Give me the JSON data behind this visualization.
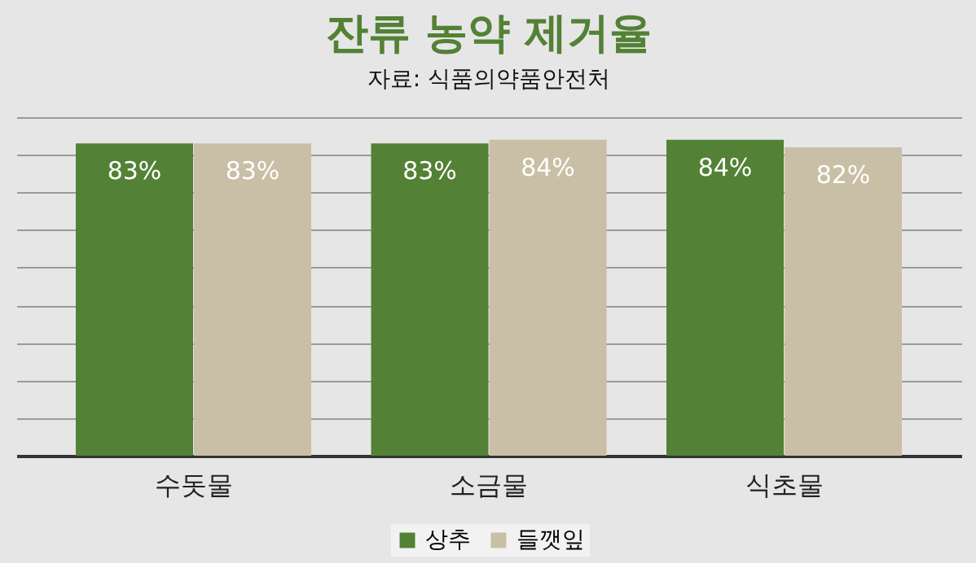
{
  "chart_data": {
    "type": "bar",
    "title": "잔류 농약 제거율",
    "subtitle": "자료: 식품의약품안전처",
    "categories": [
      "수돗물",
      "소금물",
      "식초물"
    ],
    "series": [
      {
        "name": "상추",
        "color": "#538135",
        "values": [
          83,
          83,
          84
        ],
        "value_labels": [
          "83%",
          "83%",
          "84%"
        ]
      },
      {
        "name": "들깻잎",
        "color": "#c9bfa6",
        "values": [
          83,
          84,
          82
        ],
        "value_labels": [
          "83%",
          "84%",
          "82%"
        ]
      }
    ],
    "grid": "y",
    "legend": "bottom",
    "tick_labels": "x"
  }
}
